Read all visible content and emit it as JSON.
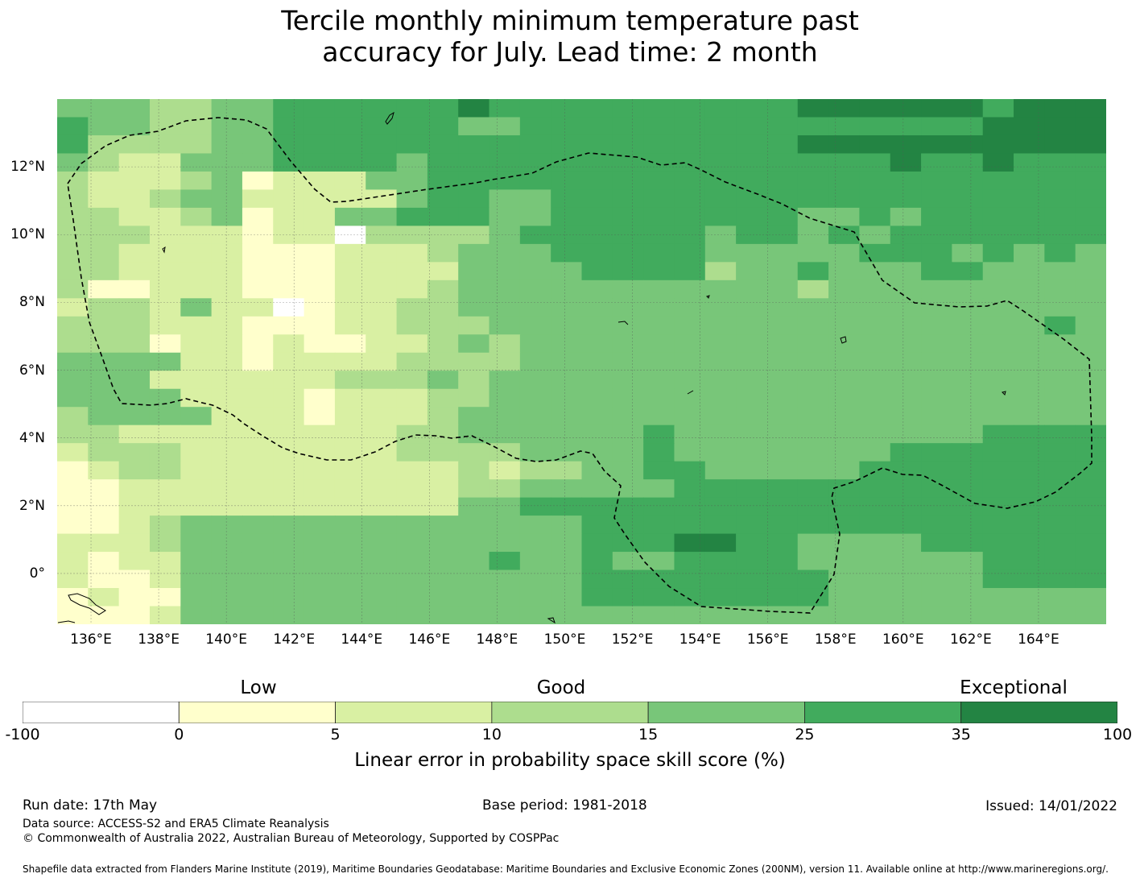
{
  "title_line1": "Tercile monthly minimum temperature past",
  "title_line2": "accuracy for July. Lead time: 2 month",
  "x_ticks": [
    "136°E",
    "138°E",
    "140°E",
    "142°E",
    "144°E",
    "146°E",
    "148°E",
    "150°E",
    "152°E",
    "154°E",
    "156°E",
    "158°E",
    "160°E",
    "162°E",
    "164°E"
  ],
  "y_ticks": [
    "12°N",
    "10°N",
    "8°N",
    "6°N",
    "4°N",
    "2°N",
    "0°"
  ],
  "colorbar": {
    "categories": [
      "Low",
      "Good",
      "Exceptional"
    ],
    "ticks": [
      "-100",
      "0",
      "5",
      "10",
      "15",
      "25",
      "35",
      "100"
    ],
    "colors": [
      "#ffffff",
      "#ffffcc",
      "#d9f0a3",
      "#addd8e",
      "#78c679",
      "#41ab5d",
      "#238443"
    ],
    "label": "Linear error in probability space skill score (%)"
  },
  "footer": {
    "run_date": "Run date: 17th May",
    "base_period": "Base period: 1981-2018",
    "issued": "Issued: 14/01/2022",
    "data_source": "Data source: ACCESS-S2 and ERA5 Climate Reanalysis",
    "copyright": "© Commonwealth of Australia 2022, Australian Bureau of Meteorology, Supported by COSPPac",
    "shapefile": "Shapefile data extracted from Flanders Marine Institute (2019), Maritime Boundaries Geodatabase: Maritime Boundaries and Exclusive Economic Zones (200NM), version 11. Available online at http://www.marineregions.org/."
  },
  "map_grid": {
    "lon_range": [
      135,
      166
    ],
    "lat_range": [
      -1.5,
      14
    ],
    "cell_deg": 0.8,
    "colors_by_class": [
      "#ffffff",
      "#ffffcc",
      "#d9f0a3",
      "#addd8e",
      "#78c679",
      "#41ab5d",
      "#238443"
    ],
    "rows_north_to_south": [
      "4443344555555655555555556666665666",
      "5443344555555445555555555555556666",
      "5333344555555555555555556666666666",
      "4322444555545555555555555556556555",
      "3222341222445555555555555555555555",
      "3223442222245544555555555555555555",
      "3322341224455544555555554454555555",
      "3332221220333345555554554545555555",
      "3322221112223444555554444455545454",
      "3322221112222444455553445444554444",
      "3112221112223444444444443444444444",
      "2332422012233444444444444444444444",
      "3332221112233344444444444444444454",
      "3331221211223434444444444444444444",
      "4444221222233334444444444444444444",
      "4442222223334344444444444444444444",
      "4444222212223344444444444444444444",
      "3444422212223444444444444444444444",
      "3322222222233444444544444444445555",
      "2333222222233334444544444445555555",
      "1233222222222323344554444455555555",
      "1122222222222334444455555555555555",
      "1122222222222445555555555555555555",
      "1123444444444444455555555555555555",
      "2223444444444444455566554444555555",
      "2122444444444454454455554444445555",
      "2112444444444444455555555444445555",
      "1211444444444444455555555444444444",
      "1112444444444444444444444444444444"
    ]
  }
}
